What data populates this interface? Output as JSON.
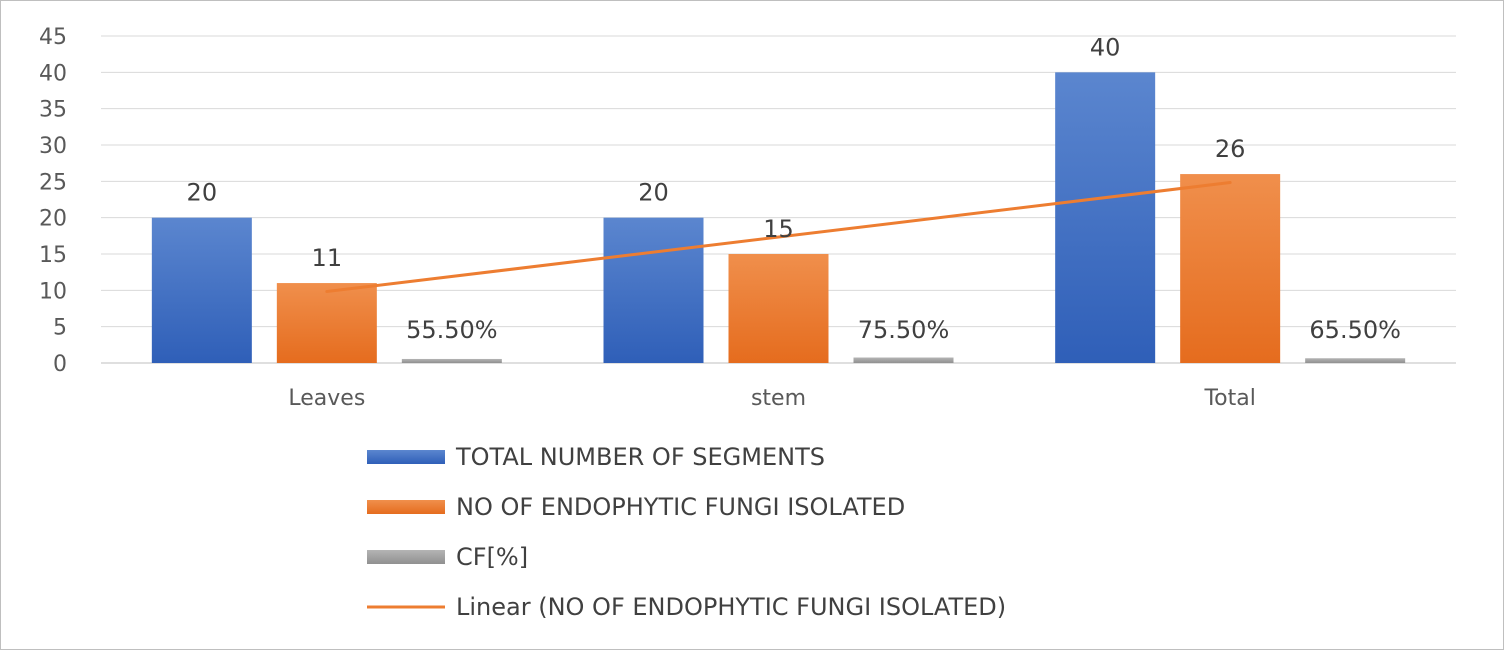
{
  "chart_data": {
    "type": "bar",
    "categories": [
      "Leaves",
      "stem",
      "Total"
    ],
    "series": [
      {
        "name": "TOTAL NUMBER OF SEGMENTS",
        "values": [
          20,
          20,
          40
        ],
        "labels": [
          "20",
          "20",
          "40"
        ],
        "color": "#4472C4"
      },
      {
        "name": "NO OF ENDOPHYTIC FUNGI ISOLATED",
        "values": [
          11,
          15,
          26
        ],
        "labels": [
          "11",
          "15",
          "26"
        ],
        "color": "#ED7D31"
      },
      {
        "name": "CF[%]",
        "values": [
          0.555,
          0.755,
          0.655
        ],
        "labels": [
          "55.50%",
          "75.50%",
          "65.50%"
        ],
        "color": "#A5A5A5"
      }
    ],
    "trendline": {
      "name": "Linear (NO OF ENDOPHYTIC FUNGI ISOLATED)",
      "type": "linear",
      "of_series": "NO OF ENDOPHYTIC FUNGI ISOLATED",
      "color": "#ED7D31"
    },
    "yticks": [
      0,
      5,
      10,
      15,
      20,
      25,
      30,
      35,
      40,
      45
    ],
    "ylim": [
      0,
      45
    ],
    "grid": true,
    "legend_position": "bottom",
    "title": "",
    "xlabel": "",
    "ylabel": ""
  }
}
